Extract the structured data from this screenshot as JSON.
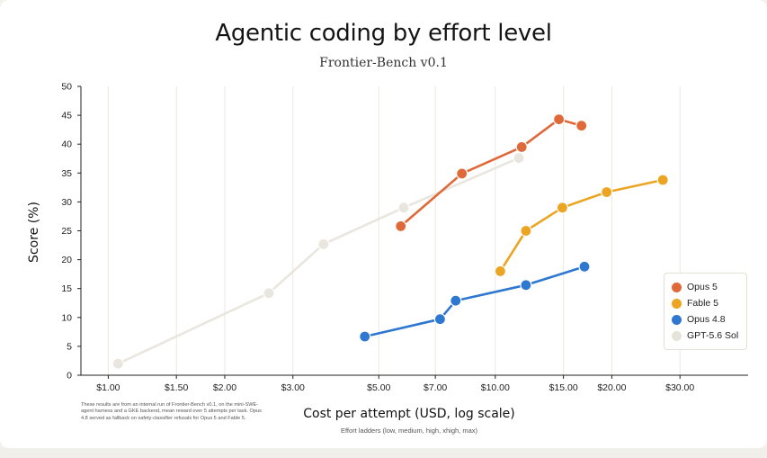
{
  "chart_data": {
    "type": "line",
    "title": "Agentic coding by effort level",
    "subtitle": "Frontier-Bench v0.1",
    "xlabel": "Cost per attempt (USD, log scale)",
    "xlabel_note": "Effort ladders (low, medium, high, xhigh, max)",
    "ylabel": "Score (%)",
    "x_scale": "log",
    "xlim": [
      0.85,
      45
    ],
    "ylim": [
      0,
      50
    ],
    "x_ticks": [
      1.0,
      1.5,
      2.0,
      3.0,
      5.0,
      7.0,
      10.0,
      15.0,
      20.0,
      30.0
    ],
    "x_tick_labels": [
      "$1.00",
      "$1.50",
      "$2.00",
      "$3.00",
      "$5.00",
      "$7.00",
      "$10.00",
      "$15.00",
      "$20.00",
      "$30.00"
    ],
    "y_ticks": [
      0,
      5,
      10,
      15,
      20,
      25,
      30,
      35,
      40,
      45,
      50
    ],
    "y_tick_labels": [
      "0",
      "5",
      "10",
      "15",
      "20",
      "25",
      "30",
      "35",
      "40",
      "45",
      "50"
    ],
    "grid": "vertical gridlines at x ticks",
    "legend_position": "bottom-right",
    "footnote": "These results are from an internal run of Frontier-Bench v0.1, on the mini-SWE-agent harness and a GKE backend, mean reward over 5 attempts per task. Opus 4.8 served as fallback on safety-classifier refusals for Opus 5 and Fable 5.",
    "series": [
      {
        "name": "Opus 5",
        "color": "#e0693a",
        "points": [
          [
            5.7,
            25.8
          ],
          [
            8.2,
            34.9
          ],
          [
            11.7,
            39.5
          ],
          [
            14.6,
            44.3
          ],
          [
            16.7,
            43.2
          ]
        ]
      },
      {
        "name": "Fable 5",
        "color": "#eba523",
        "points": [
          [
            10.3,
            18.0
          ],
          [
            12.0,
            25.0
          ],
          [
            14.9,
            29.0
          ],
          [
            19.4,
            31.7
          ],
          [
            27.1,
            33.8
          ]
        ]
      },
      {
        "name": "Opus 4.8",
        "color": "#2f78d1",
        "points": [
          [
            4.6,
            6.7
          ],
          [
            7.2,
            9.7
          ],
          [
            7.9,
            12.9
          ],
          [
            12.0,
            15.6
          ],
          [
            17.0,
            18.8
          ]
        ]
      },
      {
        "name": "GPT-5.6 Sol",
        "color": "#e8e6de",
        "points": [
          [
            1.06,
            2.0
          ],
          [
            2.6,
            14.2
          ],
          [
            3.6,
            22.7
          ],
          [
            5.8,
            29.0
          ],
          [
            11.5,
            37.6
          ]
        ]
      }
    ]
  }
}
